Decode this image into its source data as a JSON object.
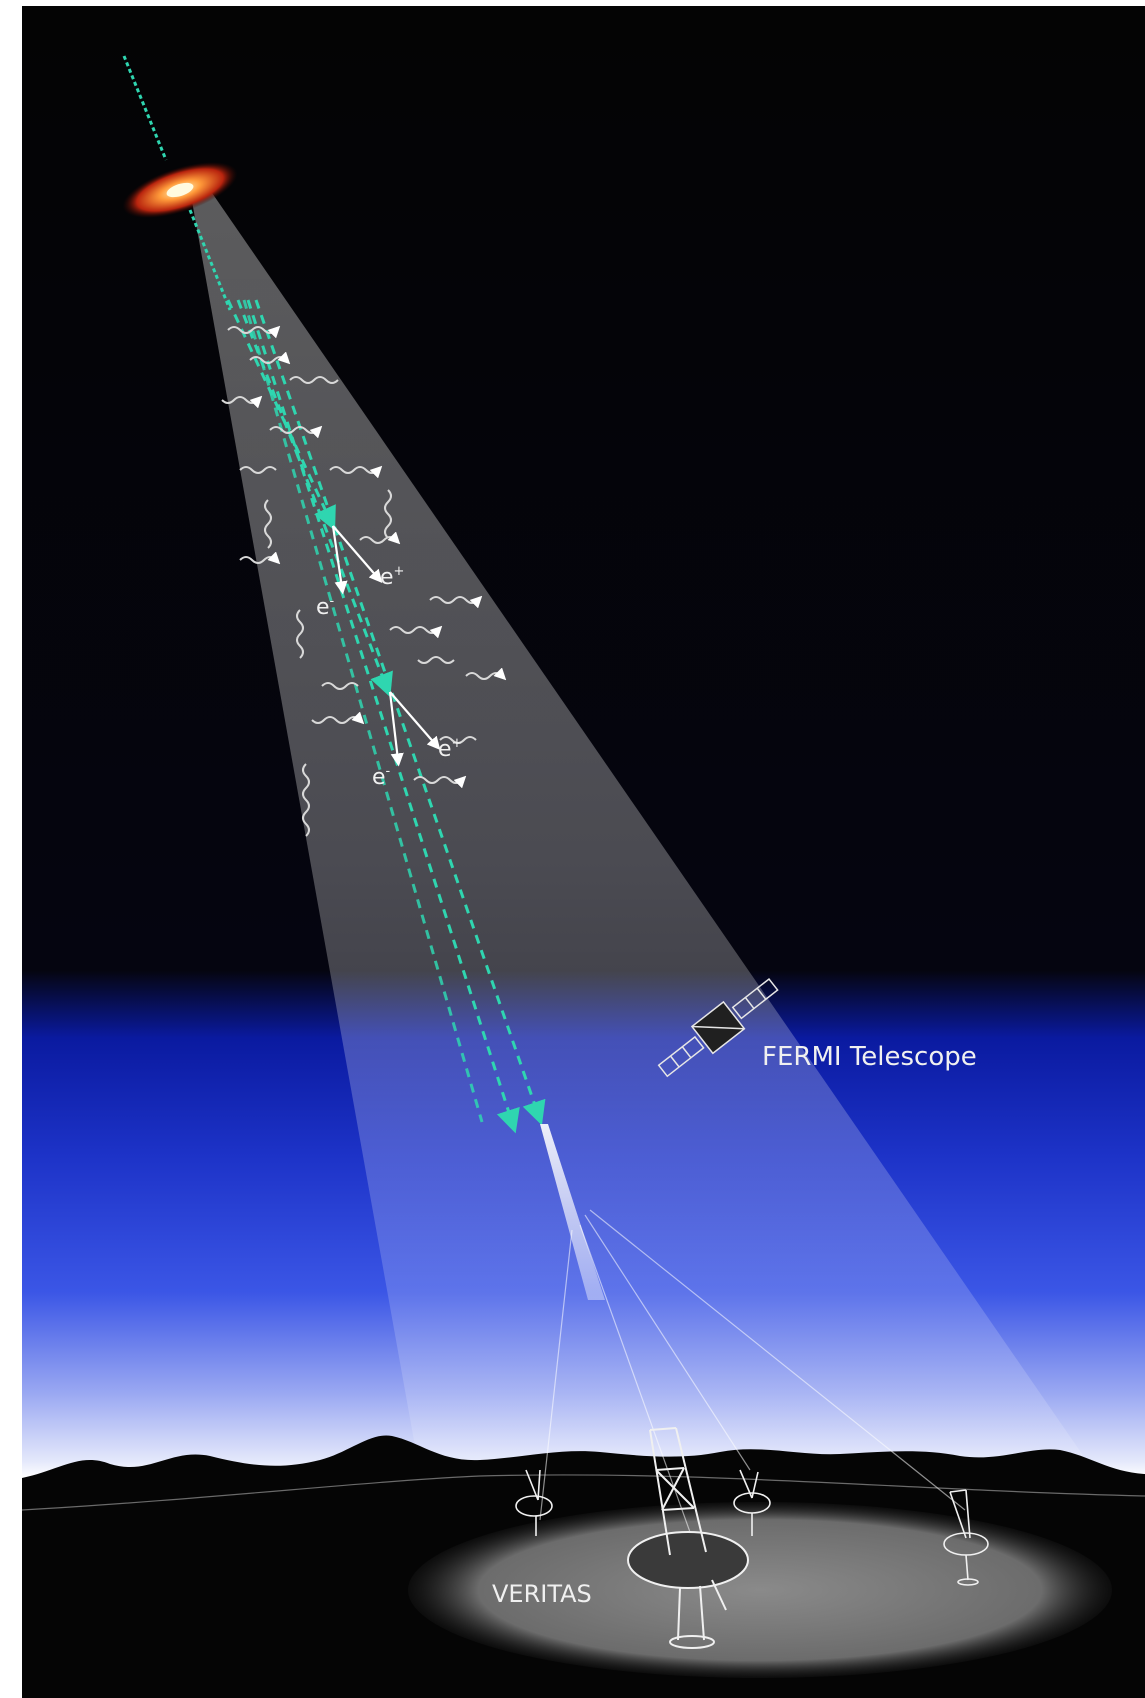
{
  "labels": {
    "fermi": "FERMI Telescope",
    "veritas": "VERITAS",
    "electron": "e",
    "positron": "e",
    "minus": "-",
    "plus": "+"
  },
  "colors": {
    "space": "#040404",
    "sky_blue": "#1a2fd6",
    "beam_dash": "#2fd6b0",
    "label": "#f0f0f0"
  }
}
